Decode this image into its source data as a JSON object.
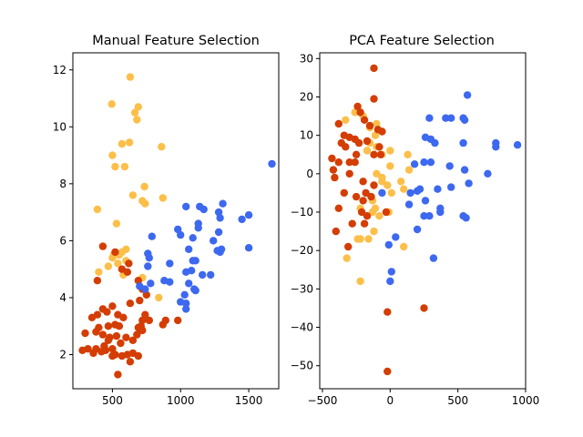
{
  "colors": {
    "orange": "#fcbf49",
    "red": "#d43d03",
    "blue": "#3d68f0"
  },
  "chart_data": [
    {
      "type": "scatter",
      "title": "Manual Feature Selection",
      "xlabel": "",
      "ylabel": "",
      "xlim": [
        210,
        1720
      ],
      "ylim": [
        0.8,
        12.6
      ],
      "xticks": [
        500,
        1000,
        1500
      ],
      "yticks": [
        2,
        4,
        6,
        8,
        10,
        12
      ],
      "grid": false,
      "series": [
        {
          "color": "orange",
          "points": [
            [
              630,
              11.75
            ],
            [
              495,
              10.8
            ],
            [
              690,
              10.7
            ],
            [
              665,
              10.5
            ],
            [
              680,
              10.25
            ],
            [
              570,
              9.4
            ],
            [
              500,
              9.0
            ],
            [
              860,
              9.3
            ],
            [
              625,
              9.45
            ],
            [
              520,
              8.6
            ],
            [
              590,
              8.6
            ],
            [
              735,
              7.9
            ],
            [
              720,
              7.4
            ],
            [
              650,
              7.6
            ],
            [
              870,
              7.5
            ],
            [
              390,
              7.1
            ],
            [
              740,
              7.3
            ],
            [
              530,
              6.6
            ],
            [
              600,
              5.7
            ],
            [
              570,
              5.6
            ],
            [
              550,
              5.5
            ],
            [
              500,
              5.4
            ],
            [
              540,
              5.2
            ],
            [
              470,
              5.1
            ],
            [
              400,
              4.9
            ],
            [
              600,
              5.3
            ],
            [
              580,
              4.8
            ],
            [
              840,
              4.0
            ],
            [
              720,
              4.7
            ],
            [
              510,
              5.5
            ]
          ]
        },
        {
          "color": "red",
          "points": [
            [
              430,
              5.8
            ],
            [
              520,
              5.6
            ],
            [
              620,
              5.2
            ],
            [
              570,
              5.0
            ],
            [
              610,
              4.9
            ],
            [
              690,
              4.6
            ],
            [
              390,
              4.6
            ],
            [
              720,
              4.3
            ],
            [
              750,
              4.1
            ],
            [
              700,
              3.9
            ],
            [
              630,
              3.8
            ],
            [
              500,
              3.7
            ],
            [
              430,
              3.6
            ],
            [
              460,
              3.5
            ],
            [
              350,
              3.3
            ],
            [
              390,
              3.4
            ],
            [
              540,
              3.4
            ],
            [
              580,
              3.3
            ],
            [
              740,
              3.4
            ],
            [
              720,
              3.2
            ],
            [
              770,
              3.2
            ],
            [
              890,
              3.2
            ],
            [
              870,
              3.05
            ],
            [
              980,
              3.2
            ],
            [
              710,
              3.0
            ],
            [
              690,
              2.95
            ],
            [
              550,
              3.0
            ],
            [
              520,
              3.05
            ],
            [
              470,
              3.0
            ],
            [
              400,
              2.95
            ],
            [
              380,
              2.8
            ],
            [
              300,
              2.75
            ],
            [
              430,
              2.7
            ],
            [
              480,
              2.6
            ],
            [
              530,
              2.65
            ],
            [
              600,
              2.6
            ],
            [
              650,
              2.5
            ],
            [
              680,
              2.7
            ],
            [
              720,
              2.85
            ],
            [
              560,
              2.4
            ],
            [
              500,
              2.2
            ],
            [
              440,
              2.3
            ],
            [
              380,
              2.2
            ],
            [
              320,
              2.2
            ],
            [
              280,
              2.15
            ],
            [
              420,
              2.1
            ],
            [
              360,
              2.05
            ],
            [
              520,
              2.0
            ],
            [
              570,
              1.95
            ],
            [
              500,
              1.95
            ],
            [
              610,
              2.0
            ],
            [
              650,
              2.05
            ],
            [
              690,
              1.95
            ],
            [
              630,
              1.75
            ],
            [
              540,
              1.3
            ],
            [
              470,
              2.5
            ],
            [
              450,
              2.15
            ]
          ]
        },
        {
          "color": "blue",
          "points": [
            [
              1670,
              8.7
            ],
            [
              1310,
              7.3
            ],
            [
              1140,
              7.2
            ],
            [
              1170,
              7.1
            ],
            [
              1040,
              7.2
            ],
            [
              1280,
              7.0
            ],
            [
              1500,
              6.9
            ],
            [
              1450,
              6.75
            ],
            [
              1290,
              6.8
            ],
            [
              1130,
              6.6
            ],
            [
              1130,
              6.45
            ],
            [
              980,
              6.4
            ],
            [
              1280,
              6.3
            ],
            [
              790,
              6.15
            ],
            [
              1000,
              6.2
            ],
            [
              1090,
              6.1
            ],
            [
              1240,
              6.0
            ],
            [
              1060,
              5.7
            ],
            [
              1300,
              5.7
            ],
            [
              1290,
              5.6
            ],
            [
              1270,
              5.65
            ],
            [
              1500,
              5.75
            ],
            [
              1110,
              5.3
            ],
            [
              1090,
              5.3
            ],
            [
              760,
              5.55
            ],
            [
              770,
              5.4
            ],
            [
              920,
              5.2
            ],
            [
              1040,
              4.9
            ],
            [
              1080,
              4.95
            ],
            [
              1160,
              4.8
            ],
            [
              1220,
              4.8
            ],
            [
              760,
              5.1
            ],
            [
              880,
              4.6
            ],
            [
              920,
              4.55
            ],
            [
              1060,
              4.5
            ],
            [
              780,
              4.5
            ],
            [
              740,
              4.3
            ],
            [
              700,
              4.4
            ],
            [
              1100,
              4.3
            ],
            [
              1110,
              4.25
            ],
            [
              1030,
              4.1
            ],
            [
              1040,
              3.8
            ],
            [
              1000,
              3.85
            ],
            [
              1040,
              3.6
            ]
          ]
        }
      ]
    },
    {
      "type": "scatter",
      "title": "PCA Feature Selection",
      "xlabel": "",
      "ylabel": "",
      "xlim": [
        -520,
        1000
      ],
      "ylim": [
        -56,
        31.5
      ],
      "xticks": [
        -500,
        0,
        500,
        1000
      ],
      "yticks": [
        -50,
        -40,
        -30,
        -20,
        -10,
        0,
        10,
        20,
        30
      ],
      "grid": false,
      "series": [
        {
          "color": "orange",
          "points": [
            [
              -330,
              14
            ],
            [
              -260,
              16
            ],
            [
              -200,
              15
            ],
            [
              -150,
              12
            ],
            [
              -100,
              13
            ],
            [
              -110,
              10
            ],
            [
              -150,
              8
            ],
            [
              -170,
              6
            ],
            [
              -100,
              7
            ],
            [
              -60,
              5
            ],
            [
              0,
              6
            ],
            [
              0,
              2
            ],
            [
              -100,
              0
            ],
            [
              -60,
              -1
            ],
            [
              -20,
              -3
            ],
            [
              80,
              -2
            ],
            [
              10,
              -5
            ],
            [
              100,
              -4
            ],
            [
              -130,
              -7
            ],
            [
              -220,
              -9
            ],
            [
              -130,
              -10
            ],
            [
              -80,
              -11
            ],
            [
              -220,
              -17
            ],
            [
              -240,
              -17
            ],
            [
              -160,
              -17
            ],
            [
              -120,
              -15
            ],
            [
              -110,
              -9
            ],
            [
              -10,
              -10
            ],
            [
              100,
              -19
            ],
            [
              140,
              1
            ],
            [
              130,
              5
            ],
            [
              -320,
              -22
            ],
            [
              -220,
              -28
            ],
            [
              -60,
              -2
            ]
          ]
        },
        {
          "color": "red",
          "points": [
            [
              -120,
              27.5
            ],
            [
              -120,
              19.5
            ],
            [
              -240,
              17.5
            ],
            [
              -220,
              16
            ],
            [
              -190,
              14
            ],
            [
              -150,
              12.5
            ],
            [
              -90,
              11.5
            ],
            [
              -60,
              11
            ],
            [
              -380,
              13
            ],
            [
              -340,
              10
            ],
            [
              -300,
              9.5
            ],
            [
              -260,
              9
            ],
            [
              -230,
              8
            ],
            [
              -170,
              8.5
            ],
            [
              -80,
              7
            ],
            [
              -120,
              5
            ],
            [
              -70,
              5
            ],
            [
              -360,
              8
            ],
            [
              -330,
              7
            ],
            [
              -250,
              5
            ],
            [
              -260,
              3
            ],
            [
              -300,
              3
            ],
            [
              -380,
              3
            ],
            [
              -430,
              4
            ],
            [
              -420,
              1
            ],
            [
              -410,
              -1
            ],
            [
              -300,
              0
            ],
            [
              -200,
              -2
            ],
            [
              -340,
              -5
            ],
            [
              -250,
              -6
            ],
            [
              -180,
              -5
            ],
            [
              -140,
              -6
            ],
            [
              -170,
              -11
            ],
            [
              -210,
              -10
            ],
            [
              -280,
              -13
            ],
            [
              -380,
              -9
            ],
            [
              -400,
              -15
            ],
            [
              -190,
              -13
            ],
            [
              -30,
              -10
            ],
            [
              -20,
              -36
            ],
            [
              250,
              -35
            ],
            [
              -20,
              -51.5
            ],
            [
              -310,
              -19
            ],
            [
              -120,
              -3
            ],
            [
              -200,
              -7
            ]
          ]
        },
        {
          "color": "blue",
          "points": [
            [
              570,
              20.5
            ],
            [
              410,
              14.5
            ],
            [
              450,
              14.5
            ],
            [
              540,
              14.5
            ],
            [
              550,
              14
            ],
            [
              290,
              14.5
            ],
            [
              260,
              9.5
            ],
            [
              300,
              9
            ],
            [
              330,
              8
            ],
            [
              540,
              8
            ],
            [
              780,
              8
            ],
            [
              780,
              7
            ],
            [
              940,
              7.5
            ],
            [
              250,
              3
            ],
            [
              180,
              2.5
            ],
            [
              300,
              3
            ],
            [
              440,
              2
            ],
            [
              550,
              1
            ],
            [
              720,
              0
            ],
            [
              580,
              -2.5
            ],
            [
              450,
              -3.5
            ],
            [
              220,
              -4
            ],
            [
              350,
              -4
            ],
            [
              150,
              -5
            ],
            [
              200,
              -4.5
            ],
            [
              -60,
              -5
            ],
            [
              140,
              -8
            ],
            [
              260,
              -7
            ],
            [
              370,
              -10
            ],
            [
              370,
              -9
            ],
            [
              250,
              -11
            ],
            [
              290,
              -11
            ],
            [
              540,
              -11
            ],
            [
              560,
              -11.5
            ],
            [
              200,
              -14.5
            ],
            [
              -10,
              -18.5
            ],
            [
              40,
              -16.5
            ],
            [
              320,
              -22
            ],
            [
              10,
              -25.5
            ],
            [
              0,
              -28
            ]
          ]
        }
      ]
    }
  ]
}
